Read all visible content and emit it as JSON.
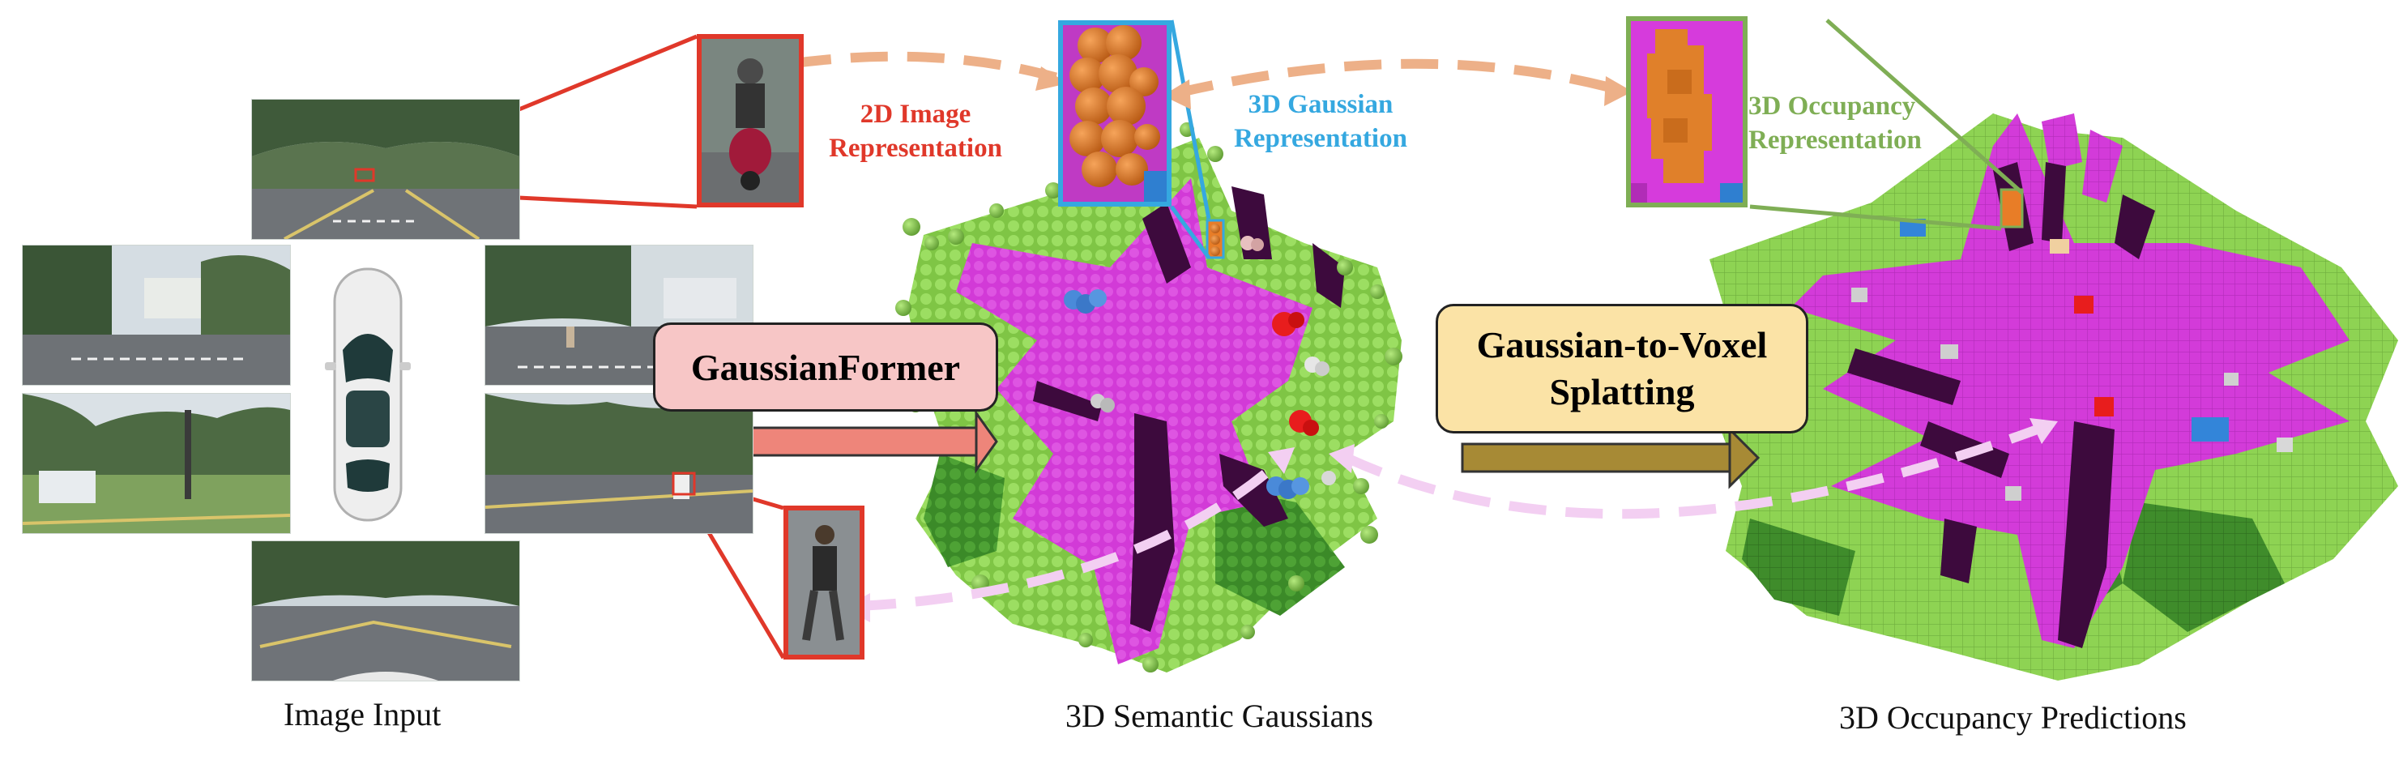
{
  "captions": {
    "image_input": "Image Input",
    "semantic_gaussians": "3D Semantic Gaussians",
    "occupancy_predictions": "3D Occupancy Predictions"
  },
  "representations": {
    "image": {
      "line1": "2D Image",
      "line2": "Representation",
      "color": "#e0382a"
    },
    "gaussian": {
      "line1": "3D Gaussian",
      "line2": "Representation",
      "color": "#35a8e0"
    },
    "occupancy": {
      "line1": "3D Occupancy",
      "line2": "Representation",
      "color": "#7fae55"
    }
  },
  "modules": {
    "gaussianformer": {
      "label": "GaussianFormer",
      "fill": "#f7c6c6",
      "arrow": "#ee857a"
    },
    "splatting": {
      "line1": "Gaussian-to-Voxel",
      "line2": "Splatting",
      "fill": "#fbe3a6",
      "arrow": "#a78a35"
    }
  },
  "colors": {
    "road": "#d33bd9",
    "vegetation": "#86cf4a",
    "terrain": "#3d8a2a",
    "sidewalk": "#3d0a3d",
    "vehicle": "#e87d27",
    "pedestrian_car": "#3385d9",
    "arrow_peach": "#edb088",
    "arrow_pink": "#f3cff2"
  }
}
